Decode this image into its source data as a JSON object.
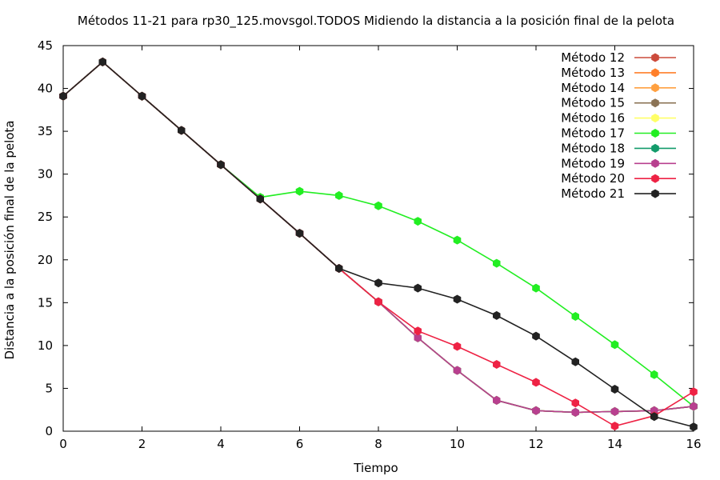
{
  "chart_data": {
    "type": "line",
    "title": "Métodos 11-21 para rp30_125.movsgol.TODOS Midiendo la distancia a la posición final de la pelota",
    "xlabel": "Tiempo",
    "ylabel": "Distancia a la posición final de la pelota",
    "xlim": [
      0,
      16
    ],
    "ylim": [
      0,
      45
    ],
    "xticks": [
      0,
      2,
      4,
      6,
      8,
      10,
      12,
      14,
      16
    ],
    "yticks": [
      0,
      5,
      10,
      15,
      20,
      25,
      30,
      35,
      40,
      45
    ],
    "grid": false,
    "legend_position": "top-right",
    "x": [
      0,
      1,
      2,
      3,
      4,
      5,
      6,
      7,
      8,
      9,
      10,
      11,
      12,
      13,
      14,
      15,
      16
    ],
    "series": [
      {
        "name": "Método 12",
        "color": "#cc4b3c",
        "values": [
          39.1,
          43.1,
          39.1,
          35.1,
          31.1,
          27.1,
          23.1,
          19.0,
          15.1,
          10.9,
          7.1,
          3.6,
          2.4,
          2.2,
          2.3,
          2.4,
          2.9
        ]
      },
      {
        "name": "Método 13",
        "color": "#ff7f2a",
        "values": [
          39.1,
          43.1,
          39.1,
          35.1,
          31.1,
          27.1,
          23.1,
          19.0,
          15.1,
          10.9,
          7.1,
          3.6,
          2.4,
          2.2,
          2.3,
          2.4,
          2.9
        ]
      },
      {
        "name": "Método 14",
        "color": "#ffa040",
        "values": [
          39.1,
          43.1,
          39.1,
          35.1,
          31.1,
          27.1,
          23.1,
          19.0,
          15.1,
          10.9,
          7.1,
          3.6,
          2.4,
          2.2,
          2.3,
          2.4,
          2.9
        ]
      },
      {
        "name": "Método 15",
        "color": "#8b7355",
        "values": [
          39.1,
          43.1,
          39.1,
          35.1,
          31.1,
          27.1,
          23.1,
          19.0,
          15.1,
          10.9,
          7.1,
          3.6,
          2.4,
          2.2,
          2.3,
          2.4,
          2.9
        ]
      },
      {
        "name": "Método 16",
        "color": "#ffff66",
        "values": [
          39.1,
          43.1,
          39.1,
          35.1,
          31.1,
          27.1,
          23.1,
          19.0,
          15.1,
          10.9,
          7.1,
          3.6,
          2.4,
          2.2,
          2.3,
          2.4,
          2.9
        ]
      },
      {
        "name": "Método 17",
        "color": "#22ee22",
        "values": [
          39.1,
          43.1,
          39.1,
          35.1,
          31.1,
          27.3,
          28.0,
          27.5,
          26.3,
          24.5,
          22.3,
          19.6,
          16.7,
          13.4,
          10.1,
          6.6,
          2.9
        ]
      },
      {
        "name": "Método 18",
        "color": "#139b6b",
        "values": [
          39.1,
          43.1,
          39.1,
          35.1,
          31.1,
          27.1,
          23.1,
          19.0,
          15.1,
          10.9,
          7.1,
          3.6,
          2.4,
          2.2,
          2.3,
          2.4,
          2.9
        ]
      },
      {
        "name": "Método 19",
        "color": "#b8408f",
        "values": [
          39.1,
          43.1,
          39.1,
          35.1,
          31.1,
          27.1,
          23.1,
          19.0,
          15.1,
          10.9,
          7.1,
          3.6,
          2.4,
          2.2,
          2.3,
          2.4,
          2.9
        ]
      },
      {
        "name": "Método 20",
        "color": "#ee2244",
        "values": [
          39.1,
          43.1,
          39.1,
          35.1,
          31.1,
          27.1,
          23.1,
          19.0,
          15.1,
          11.7,
          9.9,
          7.8,
          5.7,
          3.3,
          0.6,
          1.8,
          4.6
        ]
      },
      {
        "name": "Método 21",
        "color": "#222222",
        "values": [
          39.1,
          43.1,
          39.1,
          35.1,
          31.1,
          27.1,
          23.1,
          19.0,
          17.3,
          16.7,
          15.4,
          13.5,
          11.1,
          8.1,
          4.9,
          1.7,
          0.5
        ]
      }
    ]
  }
}
